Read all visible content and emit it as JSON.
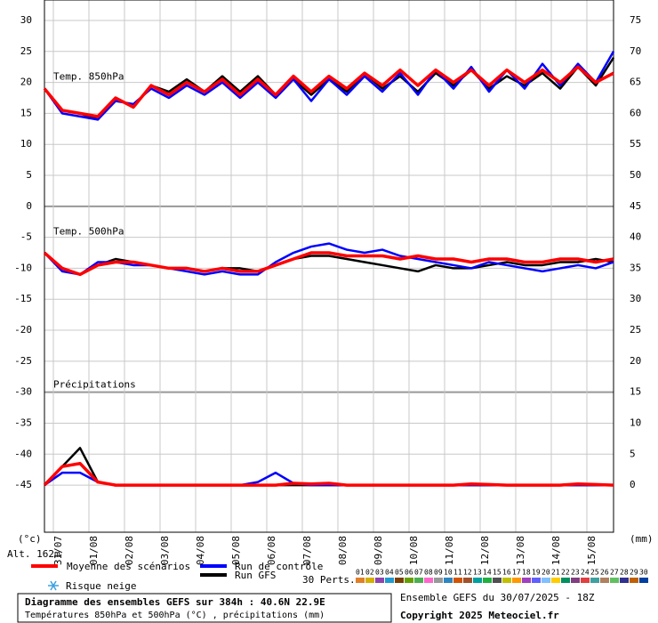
{
  "chart_data": {
    "type": "line",
    "panel_labels": [
      "Temp. 850hPa",
      "Temp. 500hPa",
      "Précipitations"
    ],
    "y_unit": "(°c)",
    "y2_unit": "(mm)",
    "xlim": [
      0,
      384
    ],
    "xticks": [
      {
        "value": 6,
        "label": "31/07"
      },
      {
        "value": 30,
        "label": "01/08"
      },
      {
        "value": 54,
        "label": "02/08"
      },
      {
        "value": 78,
        "label": "03/08"
      },
      {
        "value": 102,
        "label": "04/08"
      },
      {
        "value": 126,
        "label": "05/08"
      },
      {
        "value": 150,
        "label": "06/08"
      },
      {
        "value": 174,
        "label": "07/08"
      },
      {
        "value": 198,
        "label": "08/08"
      },
      {
        "value": 222,
        "label": "09/08"
      },
      {
        "value": 246,
        "label": "10/08"
      },
      {
        "value": 270,
        "label": "11/08"
      },
      {
        "value": 294,
        "label": "12/08"
      },
      {
        "value": 318,
        "label": "13/08"
      },
      {
        "value": 342,
        "label": "14/08"
      },
      {
        "value": 366,
        "label": "15/08"
      }
    ],
    "ylim": [
      -52.6,
      33.3
    ],
    "yticks": [
      30,
      25,
      20,
      15,
      10,
      5,
      0,
      -5,
      -10,
      -15,
      -20,
      -25,
      -30,
      -35,
      -40,
      -45
    ],
    "y2lim": [
      -7.6,
      78.3
    ],
    "y2ticks": [
      75,
      70,
      65,
      60,
      55,
      50,
      45,
      40,
      35,
      30,
      25,
      20,
      15,
      10,
      5,
      0
    ],
    "grid": true,
    "x": [
      0,
      12,
      24,
      36,
      48,
      60,
      72,
      84,
      96,
      108,
      120,
      132,
      144,
      156,
      168,
      180,
      192,
      204,
      216,
      228,
      240,
      252,
      264,
      276,
      288,
      300,
      312,
      324,
      336,
      348,
      360,
      372,
      384
    ],
    "series": [
      {
        "name": "Moyenne des scénarios",
        "color": "#ff0000",
        "t850": [
          19,
          15.5,
          15,
          14.5,
          17.5,
          16,
          19.5,
          18,
          20,
          18.5,
          20.5,
          18,
          20.5,
          18,
          21,
          18.5,
          21,
          19,
          21.5,
          19.5,
          22,
          19.5,
          22,
          20,
          22,
          19.5,
          22,
          20,
          22,
          20,
          22.5,
          20,
          21.5
        ],
        "t500": [
          -7.5,
          -10,
          -11,
          -9.5,
          -9,
          -9,
          -9.5,
          -10,
          -10,
          -10.5,
          -10,
          -10.5,
          -10.5,
          -9.5,
          -8.5,
          -7.5,
          -7.5,
          -8,
          -8,
          -8,
          -8.5,
          -8,
          -8.5,
          -8.5,
          -9,
          -8.5,
          -8.5,
          -9,
          -9,
          -8.5,
          -8.5,
          -9,
          -8.5
        ],
        "precip": [
          0,
          3,
          3.5,
          0.5,
          0,
          0,
          0,
          0,
          0,
          0,
          0,
          0,
          0,
          0,
          0.3,
          0.2,
          0.3,
          0,
          0,
          0,
          0,
          0,
          0,
          0,
          0.2,
          0.1,
          0,
          0,
          0,
          0,
          0.2,
          0.1,
          0
        ]
      },
      {
        "name": "Run de contrôle",
        "color": "#0000ff",
        "t850": [
          19,
          15,
          14.5,
          14,
          17,
          16.5,
          19,
          17.5,
          19.5,
          18,
          20,
          17.5,
          20,
          17.5,
          20.5,
          17,
          20.5,
          18,
          21,
          18.5,
          21.5,
          18,
          22,
          19,
          22.5,
          18.5,
          22,
          19,
          23,
          19.5,
          23,
          20,
          25
        ],
        "t500": [
          -7.5,
          -10.5,
          -11,
          -9,
          -9,
          -9.5,
          -9.5,
          -10,
          -10.5,
          -11,
          -10.5,
          -11,
          -11,
          -9,
          -7.5,
          -6.5,
          -6,
          -7,
          -7.5,
          -7,
          -8,
          -8.5,
          -9,
          -9.5,
          -10,
          -9,
          -9.5,
          -10,
          -10.5,
          -10,
          -9.5,
          -10,
          -9
        ],
        "precip": [
          0,
          2,
          2,
          0.5,
          0,
          0,
          0,
          0,
          0,
          0,
          0,
          0,
          0.5,
          2,
          0.3,
          0,
          0,
          0,
          0,
          0,
          0,
          0,
          0,
          0,
          0,
          0,
          0,
          0,
          0,
          0,
          0,
          0,
          0
        ]
      },
      {
        "name": "Run GFS",
        "color": "#000000",
        "t850": [
          19,
          15.5,
          15,
          14,
          17.5,
          16,
          19.5,
          18.5,
          20.5,
          18.5,
          21,
          18.5,
          21,
          18,
          20.5,
          18,
          20.5,
          18.5,
          21.5,
          19,
          21,
          18.5,
          21.5,
          19.5,
          22,
          19,
          21,
          19.5,
          21.5,
          19,
          22.5,
          19.5,
          24
        ],
        "t500": [
          -7.5,
          -10,
          -11,
          -9.5,
          -8.5,
          -9,
          -9.5,
          -10,
          -10,
          -10.5,
          -10,
          -10,
          -10.5,
          -9.5,
          -8.5,
          -8,
          -8,
          -8.5,
          -9,
          -9.5,
          -10,
          -10.5,
          -9.5,
          -10,
          -10,
          -9.5,
          -9,
          -9.5,
          -9.5,
          -9,
          -9,
          -8.5,
          -9
        ],
        "precip": [
          0,
          3,
          6,
          0.5,
          0,
          0,
          0,
          0,
          0,
          0,
          0,
          0,
          0,
          0,
          0,
          0,
          0,
          0,
          0,
          0,
          0,
          0,
          0,
          0,
          0,
          0,
          0,
          0,
          0,
          0,
          0,
          0,
          0
        ]
      }
    ]
  },
  "altitude": "Alt. 162m",
  "snow_label": "Risque neige",
  "perts": {
    "label": "30 Perts.",
    "numbers": [
      "01",
      "02",
      "03",
      "04",
      "05",
      "06",
      "07",
      "08",
      "09",
      "10",
      "11",
      "12",
      "13",
      "14",
      "15",
      "16",
      "17",
      "18",
      "19",
      "20",
      "21",
      "22",
      "23",
      "24",
      "25",
      "26",
      "27",
      "28",
      "29",
      "30"
    ],
    "colors": [
      "#e0802a",
      "#d4b000",
      "#8e44ad",
      "#1f9bd1",
      "#7b3f00",
      "#66a000",
      "#4caf50",
      "#ff66cc",
      "#999999",
      "#2e86c1",
      "#d35400",
      "#a0522d",
      "#00a0a0",
      "#20b040",
      "#505050",
      "#c0c000",
      "#ff9900",
      "#a040c0",
      "#6060ff",
      "#80c0ff",
      "#ffcc00",
      "#009060",
      "#804080",
      "#e04040",
      "#40a0a0",
      "#b08060",
      "#60c060",
      "#303090",
      "#c06000",
      "#0040a0"
    ]
  },
  "footer": {
    "title": "Diagramme des ensembles GEFS sur 384h : 40.6N 22.9E",
    "subtitle": "Températures 850hPa et 500hPa (°C) , précipitations (mm)",
    "run": "Ensemble GEFS du 30/07/2025 - 18Z",
    "copyright": "Copyright 2025 Meteociel.fr"
  }
}
